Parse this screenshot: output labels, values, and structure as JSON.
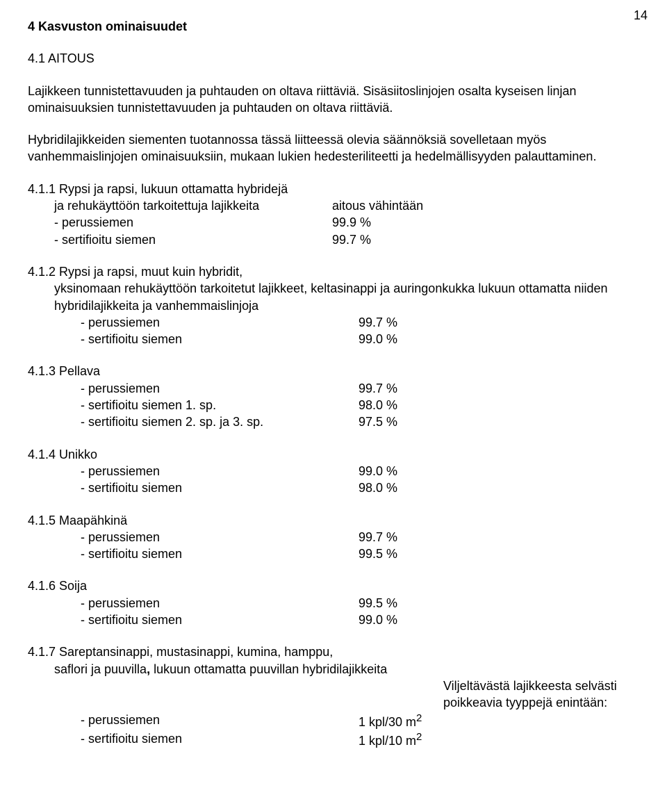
{
  "page_number": "14",
  "h1": "4 Kasvuston ominaisuudet",
  "h2": "4.1 AITOUS",
  "para1": "Lajikkeen tunnistettavuuden ja puhtauden on oltava riittäviä. Sisäsiitoslinjojen osalta kyseisen linjan ominaisuuksien tunnistettavuuden ja puhtauden on oltava riittäviä.",
  "para2": "Hybridilajikkeiden siementen tuotannossa tässä liitteessä olevia säännöksiä sovelletaan myös vanhemmaislinjojen ominaisuuksiin, mukaan lukien hedesteriliteetti ja hedelmällisyyden palauttaminen.",
  "s411": {
    "title_l1": "4.1.1 Rypsi ja rapsi, lukuun ottamatta hybridejä",
    "title_l2": "ja rehukäyttöön tarkoitettuja lajikkeita",
    "rhs": "aitous vähintään",
    "r1": {
      "label": "- perussiemen",
      "value": "99.9 %"
    },
    "r2": {
      "label": "- sertifioitu siemen",
      "value": "99.7 %"
    }
  },
  "s412": {
    "title_l1": "4.1.2 Rypsi ja rapsi, muut kuin hybridit,",
    "title_l2": "yksinomaan rehukäyttöön tarkoitetut lajikkeet, keltasinappi ja auringonkukka lukuun ottamatta niiden hybridilajikkeita ja vanhemmaislinjoja",
    "r1": {
      "label": "- perussiemen",
      "value": "99.7 %"
    },
    "r2": {
      "label": "- sertifioitu siemen",
      "value": "99.0 %"
    }
  },
  "s413": {
    "title": "4.1.3 Pellava",
    "r1": {
      "label": "- perussiemen",
      "value": "99.7 %"
    },
    "r2": {
      "label": "- sertifioitu siemen 1. sp.",
      "value": "98.0 %"
    },
    "r3": {
      "label": "- sertifioitu siemen 2. sp. ja 3. sp.",
      "value": "97.5 %"
    }
  },
  "s414": {
    "title": "4.1.4 Unikko",
    "r1": {
      "label": "- perussiemen",
      "value": "99.0 %"
    },
    "r2": {
      "label": "- sertifioitu siemen",
      "value": "98.0 %"
    }
  },
  "s415": {
    "title": "4.1.5 Maapähkinä",
    "r1": {
      "label": "- perussiemen",
      "value": "99.7 %"
    },
    "r2": {
      "label": "- sertifioitu siemen",
      "value": "99.5 %"
    }
  },
  "s416": {
    "title": "4.1.6 Soija",
    "r1": {
      "label": "- perussiemen",
      "value": "99.5 %"
    },
    "r2": {
      "label": "- sertifioitu siemen",
      "value": "99.0 %"
    }
  },
  "s417": {
    "title_l1": "4.1.7 Sareptansinappi, mustasinappi, kumina, hamppu,",
    "title_l2_pre": "saflori ja puuvilla",
    "title_l2_post": " lukuun ottamatta puuvillan hybridilajikkeita",
    "note_l1": "Viljeltävästä lajikkeesta selvästi",
    "note_l2": "poikkeavia tyyppejä enintään:",
    "r1": {
      "label": "- perussiemen",
      "value": "1 kpl/30 m",
      "sup": "2"
    },
    "r2": {
      "label": "- sertifioitu siemen",
      "value": "1 kpl/10 m",
      "sup": "2"
    }
  }
}
